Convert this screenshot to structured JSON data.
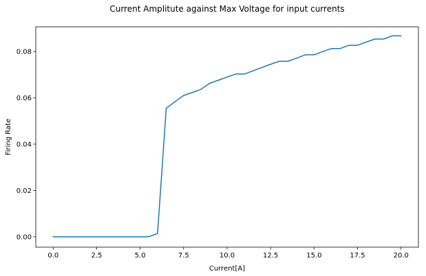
{
  "chart_data": {
    "type": "line",
    "title": "Current Amplitute against Max Voltage for input currents",
    "xlabel": "Current[A]",
    "ylabel": "Firing Rate",
    "xlim": [
      -1.0,
      21.0
    ],
    "ylim": [
      -0.0045,
      0.0907
    ],
    "xticks": [
      0.0,
      2.5,
      5.0,
      7.5,
      10.0,
      12.5,
      15.0,
      17.5,
      20.0
    ],
    "xtick_labels": [
      "0.0",
      "2.5",
      "5.0",
      "7.5",
      "10.0",
      "12.5",
      "15.0",
      "17.5",
      "20.0"
    ],
    "yticks": [
      0.0,
      0.02,
      0.04,
      0.06,
      0.08
    ],
    "ytick_labels": [
      "0.00",
      "0.02",
      "0.04",
      "0.06",
      "0.08"
    ],
    "grid": false,
    "legend": "none",
    "series": [
      {
        "color": "#1f77b4",
        "x": [
          0.0,
          0.5,
          1.0,
          1.5,
          2.0,
          2.5,
          3.0,
          3.5,
          4.0,
          4.5,
          5.0,
          5.5,
          6.0,
          6.5,
          7.0,
          7.5,
          8.0,
          8.5,
          9.0,
          9.5,
          10.0,
          10.5,
          11.0,
          11.5,
          12.0,
          12.5,
          13.0,
          13.5,
          14.0,
          14.5,
          15.0,
          15.5,
          16.0,
          16.5,
          17.0,
          17.5,
          18.0,
          18.5,
          19.0,
          19.5,
          20.0
        ],
        "y": [
          0.0,
          0.0,
          0.0,
          0.0,
          0.0,
          0.0,
          0.0,
          0.0,
          0.0,
          0.0,
          0.0,
          0.0,
          0.0014,
          0.0555,
          0.0583,
          0.061,
          0.0623,
          0.0637,
          0.0663,
          0.0676,
          0.069,
          0.0703,
          0.0703,
          0.0717,
          0.0731,
          0.0745,
          0.0758,
          0.0758,
          0.0772,
          0.0786,
          0.0786,
          0.08,
          0.0813,
          0.0813,
          0.0827,
          0.0827,
          0.0841,
          0.0854,
          0.0854,
          0.0868,
          0.0868
        ]
      }
    ]
  }
}
